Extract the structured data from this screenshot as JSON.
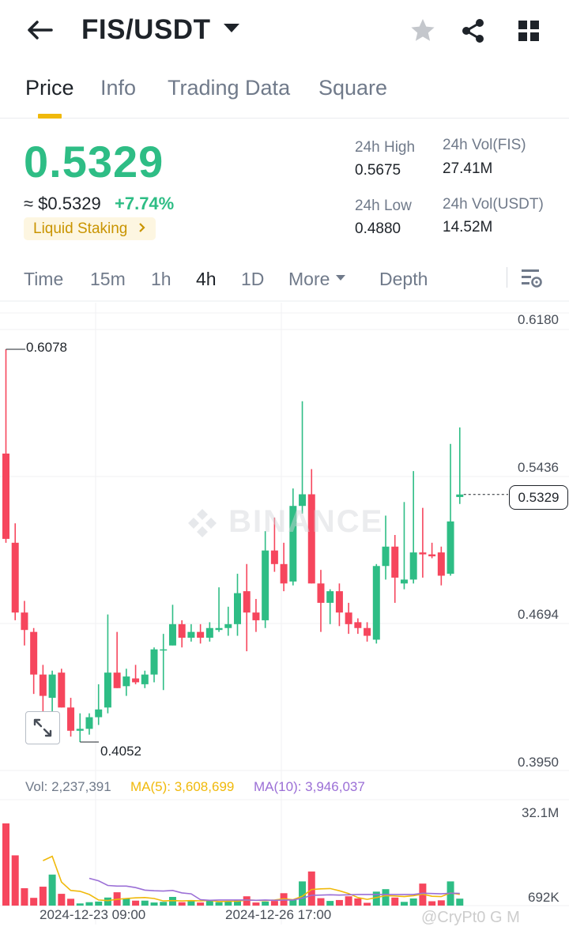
{
  "header": {
    "pair": "FIS/USDT",
    "back_icon": "arrow-left-icon",
    "favorite_icon": "star-icon",
    "share_icon": "share-icon",
    "menu_icon": "grid-icon"
  },
  "tabs": [
    {
      "label": "Price",
      "active": true
    },
    {
      "label": "Info",
      "active": false
    },
    {
      "label": "Trading Data",
      "active": false
    },
    {
      "label": "Square",
      "active": false
    }
  ],
  "ticker": {
    "last_price": "0.5329",
    "usd_price": "≈ $0.5329",
    "change": "+7.74%",
    "tag": "Liquid Staking",
    "high_label": "24h High",
    "high_value": "0.5675",
    "low_label": "24h Low",
    "low_value": "0.4880",
    "vol_base_label": "24h Vol(FIS)",
    "vol_base_value": "27.41M",
    "vol_quote_label": "24h Vol(USDT)",
    "vol_quote_value": "14.52M"
  },
  "intervals": {
    "items": [
      "Time",
      "15m",
      "1h",
      "4h",
      "1D"
    ],
    "active": "4h",
    "more": "More",
    "depth": "Depth"
  },
  "chart": {
    "watermark": "BINANCE",
    "price_axis": [
      "0.6180",
      "0.5436",
      "0.4694",
      "0.3950"
    ],
    "current_price": "0.5329",
    "high_marker": "0.6078",
    "low_marker": "0.4052",
    "volume_axis_top": "32.1M",
    "volume_axis_bottom": "692K",
    "vol_text": "Vol: 2,237,391",
    "ma5_text": "MA(5): 3,608,699",
    "ma10_text": "MA(10): 3,946,037",
    "time_labels": [
      "2024-12-23 09:00",
      "2024-12-26 17:00"
    ],
    "colors": {
      "up": "#2ebd85",
      "down": "#f6465d",
      "ma5": "#f0b90b",
      "ma10": "#9b6fd6"
    }
  },
  "chart_data": {
    "type": "candlestick",
    "interval": "4h",
    "price_range": [
      0.395,
      0.618
    ],
    "volume_range": [
      0,
      32100000
    ],
    "candles": [
      {
        "o": 0.554,
        "h": 0.6078,
        "l": 0.508,
        "c": 0.51
      },
      {
        "o": 0.508,
        "h": 0.518,
        "l": 0.468,
        "c": 0.472
      },
      {
        "o": 0.472,
        "h": 0.478,
        "l": 0.455,
        "c": 0.463
      },
      {
        "o": 0.462,
        "h": 0.464,
        "l": 0.43,
        "c": 0.44
      },
      {
        "o": 0.44,
        "h": 0.445,
        "l": 0.418,
        "c": 0.429
      },
      {
        "o": 0.428,
        "h": 0.442,
        "l": 0.42,
        "c": 0.44
      },
      {
        "o": 0.441,
        "h": 0.443,
        "l": 0.423,
        "c": 0.423
      },
      {
        "o": 0.423,
        "h": 0.428,
        "l": 0.408,
        "c": 0.411
      },
      {
        "o": 0.411,
        "h": 0.42,
        "l": 0.4052,
        "c": 0.412
      },
      {
        "o": 0.412,
        "h": 0.42,
        "l": 0.409,
        "c": 0.418
      },
      {
        "o": 0.418,
        "h": 0.435,
        "l": 0.414,
        "c": 0.422
      },
      {
        "o": 0.423,
        "h": 0.471,
        "l": 0.42,
        "c": 0.441
      },
      {
        "o": 0.441,
        "h": 0.462,
        "l": 0.433,
        "c": 0.433
      },
      {
        "o": 0.434,
        "h": 0.443,
        "l": 0.429,
        "c": 0.439
      },
      {
        "o": 0.438,
        "h": 0.445,
        "l": 0.435,
        "c": 0.436
      },
      {
        "o": 0.435,
        "h": 0.442,
        "l": 0.433,
        "c": 0.44
      },
      {
        "o": 0.44,
        "h": 0.454,
        "l": 0.436,
        "c": 0.453
      },
      {
        "o": 0.453,
        "h": 0.461,
        "l": 0.432,
        "c": 0.453
      },
      {
        "o": 0.455,
        "h": 0.476,
        "l": 0.455,
        "c": 0.466
      },
      {
        "o": 0.466,
        "h": 0.468,
        "l": 0.454,
        "c": 0.459
      },
      {
        "o": 0.459,
        "h": 0.466,
        "l": 0.457,
        "c": 0.462
      },
      {
        "o": 0.462,
        "h": 0.466,
        "l": 0.456,
        "c": 0.459
      },
      {
        "o": 0.459,
        "h": 0.467,
        "l": 0.457,
        "c": 0.464
      },
      {
        "o": 0.463,
        "h": 0.485,
        "l": 0.462,
        "c": 0.464
      },
      {
        "o": 0.464,
        "h": 0.475,
        "l": 0.46,
        "c": 0.466
      },
      {
        "o": 0.466,
        "h": 0.492,
        "l": 0.46,
        "c": 0.482
      },
      {
        "o": 0.483,
        "h": 0.497,
        "l": 0.452,
        "c": 0.472
      },
      {
        "o": 0.472,
        "h": 0.479,
        "l": 0.462,
        "c": 0.468
      },
      {
        "o": 0.468,
        "h": 0.514,
        "l": 0.464,
        "c": 0.504
      },
      {
        "o": 0.504,
        "h": 0.521,
        "l": 0.493,
        "c": 0.497
      },
      {
        "o": 0.497,
        "h": 0.508,
        "l": 0.483,
        "c": 0.487
      },
      {
        "o": 0.488,
        "h": 0.536,
        "l": 0.486,
        "c": 0.527
      },
      {
        "o": 0.527,
        "h": 0.581,
        "l": 0.523,
        "c": 0.533
      },
      {
        "o": 0.533,
        "h": 0.546,
        "l": 0.487,
        "c": 0.487
      },
      {
        "o": 0.487,
        "h": 0.494,
        "l": 0.462,
        "c": 0.477
      },
      {
        "o": 0.477,
        "h": 0.484,
        "l": 0.466,
        "c": 0.483
      },
      {
        "o": 0.483,
        "h": 0.487,
        "l": 0.465,
        "c": 0.472
      },
      {
        "o": 0.472,
        "h": 0.477,
        "l": 0.461,
        "c": 0.466
      },
      {
        "o": 0.467,
        "h": 0.469,
        "l": 0.461,
        "c": 0.464
      },
      {
        "o": 0.464,
        "h": 0.467,
        "l": 0.457,
        "c": 0.46
      },
      {
        "o": 0.458,
        "h": 0.497,
        "l": 0.456,
        "c": 0.496
      },
      {
        "o": 0.496,
        "h": 0.522,
        "l": 0.489,
        "c": 0.506
      },
      {
        "o": 0.506,
        "h": 0.512,
        "l": 0.477,
        "c": 0.49
      },
      {
        "o": 0.487,
        "h": 0.529,
        "l": 0.484,
        "c": 0.489
      },
      {
        "o": 0.489,
        "h": 0.545,
        "l": 0.487,
        "c": 0.503
      },
      {
        "o": 0.503,
        "h": 0.526,
        "l": 0.49,
        "c": 0.502
      },
      {
        "o": 0.502,
        "h": 0.508,
        "l": 0.5,
        "c": 0.501
      },
      {
        "o": 0.503,
        "h": 0.506,
        "l": 0.486,
        "c": 0.491
      },
      {
        "o": 0.492,
        "h": 0.559,
        "l": 0.491,
        "c": 0.519
      },
      {
        "o": 0.5316,
        "h": 0.5675,
        "l": 0.528,
        "c": 0.5329
      }
    ],
    "volumes": [
      26.5,
      16.2,
      5.6,
      2.5,
      6.1,
      10.0,
      3.8,
      2.2,
      0.7,
      1.1,
      1.3,
      2.6,
      4.3,
      2.4,
      1.6,
      1.6,
      1.0,
      1.2,
      2.8,
      1.1,
      1.6,
      1.0,
      1.9,
      1.1,
      1.4,
      1.8,
      3.0,
      1.0,
      1.3,
      1.5,
      4.0,
      1.8,
      7.8,
      11.0,
      2.4,
      1.5,
      1.8,
      3.0,
      2.3,
      0.9,
      4.5,
      5.3,
      2.6,
      1.2,
      2.3,
      7.1,
      1.4,
      1.7,
      7.8,
      2.24
    ],
    "ma5": [
      null,
      null,
      null,
      null,
      14.5,
      15.9,
      7.6,
      4.9,
      4.6,
      3.6,
      1.8,
      1.6,
      2.0,
      2.3,
      2.5,
      2.6,
      2.3,
      1.5,
      1.6,
      1.5,
      1.6,
      1.5,
      1.7,
      1.3,
      1.4,
      1.4,
      1.8,
      1.7,
      1.6,
      1.8,
      2.2,
      1.9,
      3.0,
      5.2,
      5.4,
      5.5,
      4.8,
      3.9,
      2.6,
      2.0,
      2.6,
      3.2,
      3.1,
      2.9,
      3.2,
      3.7,
      3.0,
      2.9,
      4.1,
      3.61
    ],
    "ma10": [
      null,
      null,
      null,
      null,
      null,
      null,
      null,
      null,
      null,
      8.8,
      8.0,
      6.5,
      6.3,
      6.3,
      5.8,
      5.0,
      4.8,
      4.7,
      4.9,
      4.1,
      3.8,
      1.9,
      1.7,
      1.8,
      1.8,
      1.8,
      1.8,
      1.7,
      1.8,
      1.7,
      1.8,
      1.8,
      2.4,
      3.3,
      3.4,
      3.5,
      3.4,
      3.5,
      3.6,
      3.6,
      3.6,
      3.6,
      3.6,
      3.6,
      3.6,
      4.0,
      3.9,
      3.8,
      4.0,
      3.95
    ]
  },
  "attribution": "@CryPt0 G M"
}
